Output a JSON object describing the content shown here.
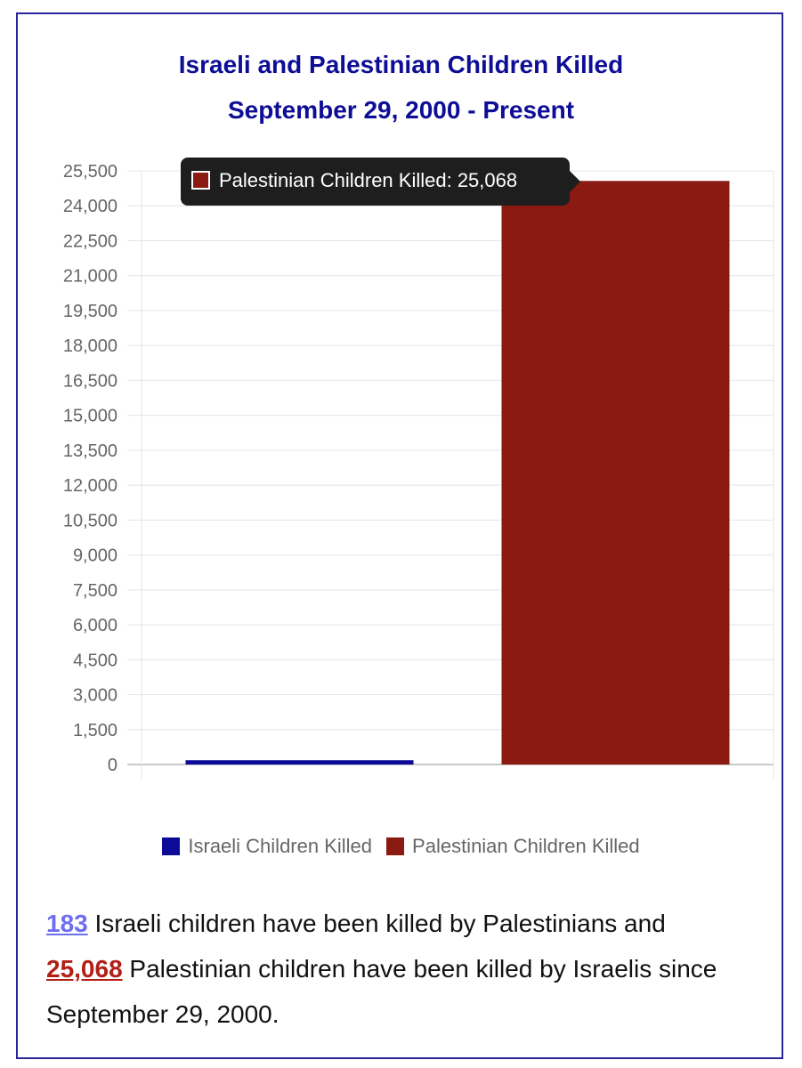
{
  "chart_data": {
    "type": "bar",
    "title": "Israeli and Palestinian Children Killed",
    "subtitle": "September 29, 2000 - Present",
    "ylim": [
      0,
      25500
    ],
    "yticks": [
      "25,500",
      "24,000",
      "22,500",
      "21,000",
      "19,500",
      "18,000",
      "16,500",
      "15,000",
      "13,500",
      "12,000",
      "10,500",
      "9,000",
      "7,500",
      "6,000",
      "4,500",
      "3,000",
      "1,500",
      "0"
    ],
    "grid": true,
    "legend_position": "bottom",
    "series": [
      {
        "name": "Israeli Children Killed",
        "value": 183,
        "color": "#0b0b98"
      },
      {
        "name": "Palestinian Children Killed",
        "value": 25068,
        "color": "#8b1a13"
      }
    ]
  },
  "tooltip": {
    "text": "Palestinian Children Killed: 25,068",
    "swatch_color": "#8b1a13"
  },
  "caption": {
    "israeli_count": "183",
    "israeli_text": " Israeli children have been killed by Palestinians and",
    "palestinian_count": "25,068",
    "palestinian_text": " Palestinian children have been killed by Israelis since September 29, 2000."
  },
  "colors": {
    "frame": "#27279e",
    "title": "#0d0d96",
    "grid": "#e4e4e4",
    "axis_text": "#666666"
  }
}
